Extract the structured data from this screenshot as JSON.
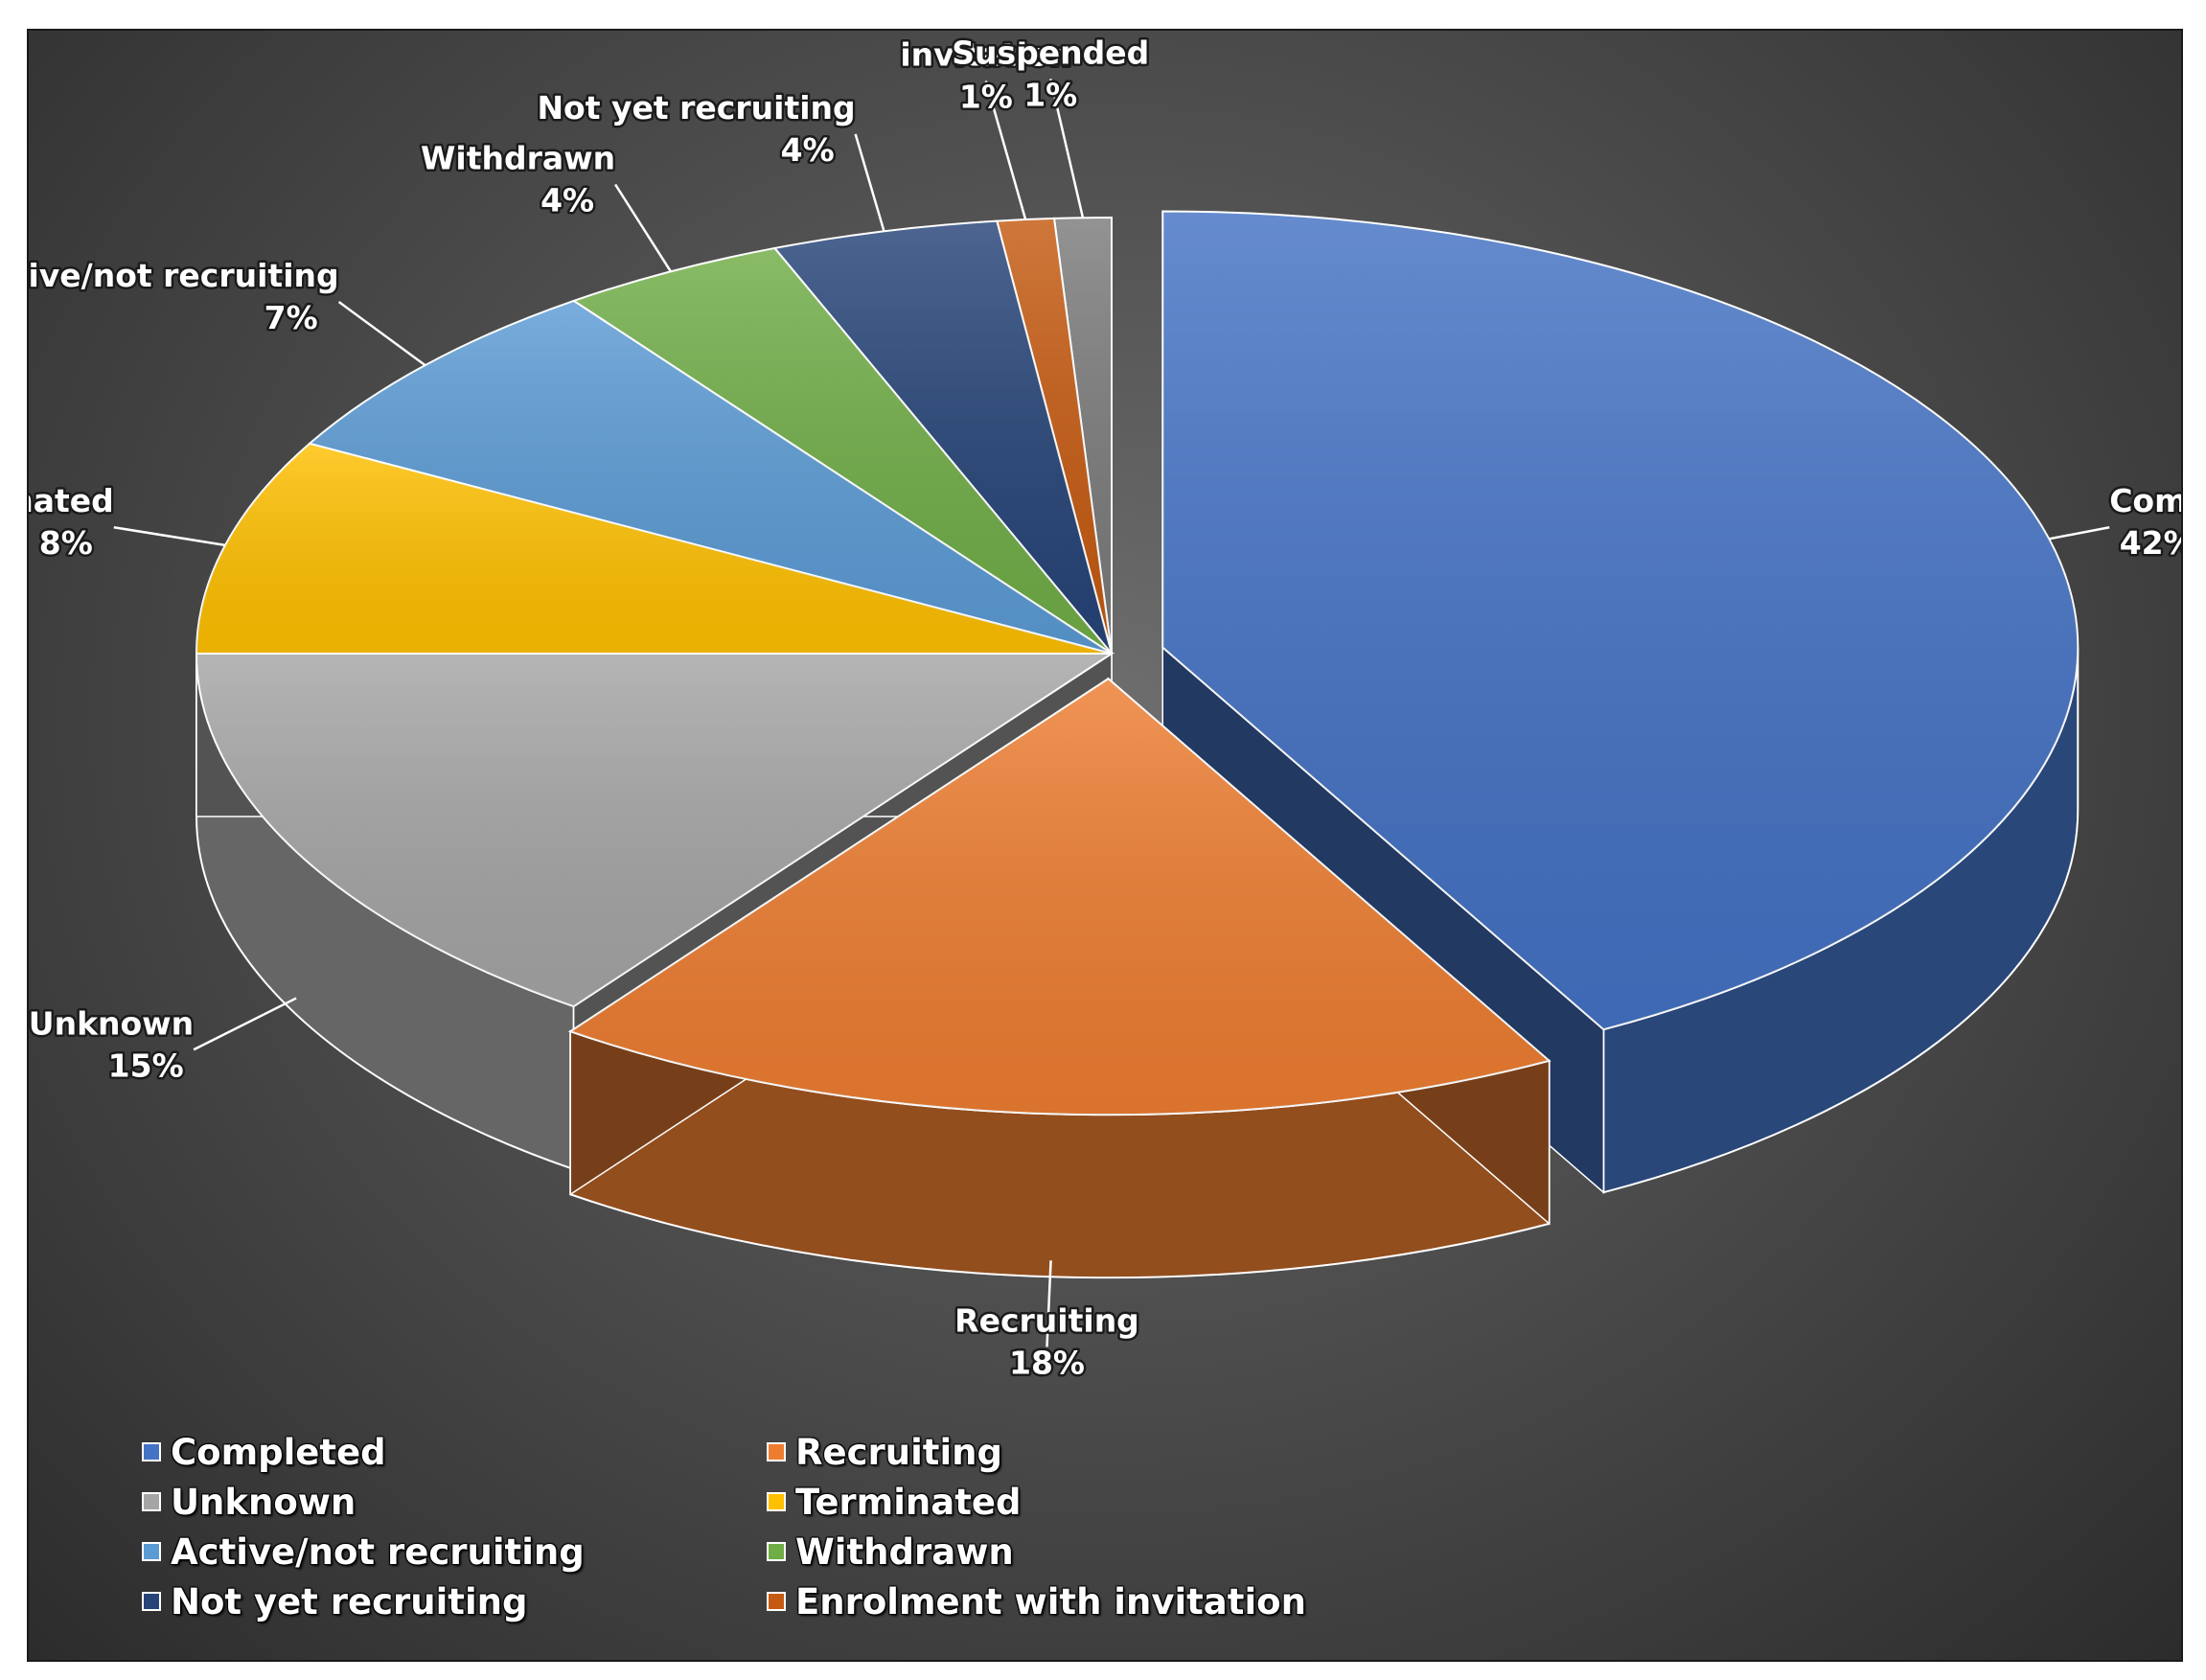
{
  "chart_data": {
    "type": "pie",
    "title": "",
    "style": "3d-exploded",
    "legend_position": "bottom-left",
    "background_color": "#4a4a4a",
    "slices": [
      {
        "label": "Completed",
        "label_lines": [
          "Completed"
        ],
        "value": 42,
        "value_label": "42%",
        "color": "#4472C4",
        "exploded": true
      },
      {
        "label": "Recruiting",
        "label_lines": [
          "Recruiting"
        ],
        "value": 18,
        "value_label": "18%",
        "color": "#ED7D31",
        "exploded": true
      },
      {
        "label": "Unknown",
        "label_lines": [
          "Unknown"
        ],
        "value": 15,
        "value_label": "15%",
        "color": "#A5A5A5",
        "exploded": false
      },
      {
        "label": "Terminated",
        "label_lines": [
          "Terminated"
        ],
        "value": 8,
        "value_label": "8%",
        "color": "#FFC000",
        "exploded": false
      },
      {
        "label": "Active/not recruiting",
        "label_lines": [
          "Active/not recruiting"
        ],
        "value": 7,
        "value_label": "7%",
        "color": "#5B9BD5",
        "exploded": false
      },
      {
        "label": "Withdrawn",
        "label_lines": [
          "Withdrawn"
        ],
        "value": 4,
        "value_label": "4%",
        "color": "#70AD47",
        "exploded": false
      },
      {
        "label": "Not yet recruiting",
        "label_lines": [
          "Not yet recruiting"
        ],
        "value": 4,
        "value_label": "4%",
        "color": "#264478",
        "exploded": false
      },
      {
        "label": "Enrolment with invitation",
        "label_lines": [
          "Enrolment with",
          "invitation"
        ],
        "value": 1,
        "value_label": "1%",
        "color": "#C55A11",
        "exploded": false
      },
      {
        "label": "Suspended",
        "label_lines": [
          "Suspended"
        ],
        "value": 1,
        "value_label": "1%",
        "color": "#7B7B7B",
        "exploded": false
      }
    ],
    "legend": [
      {
        "label": "Completed",
        "color": "#4472C4"
      },
      {
        "label": "Recruiting",
        "color": "#ED7D31"
      },
      {
        "label": "Unknown",
        "color": "#A5A5A5"
      },
      {
        "label": "Terminated",
        "color": "#FFC000"
      },
      {
        "label": "Active/not recruiting",
        "color": "#5B9BD5"
      },
      {
        "label": "Withdrawn",
        "color": "#70AD47"
      },
      {
        "label": "Not yet recruiting",
        "color": "#264478"
      },
      {
        "label": "Enrolment with invitation",
        "color": "#C55A11"
      }
    ]
  }
}
